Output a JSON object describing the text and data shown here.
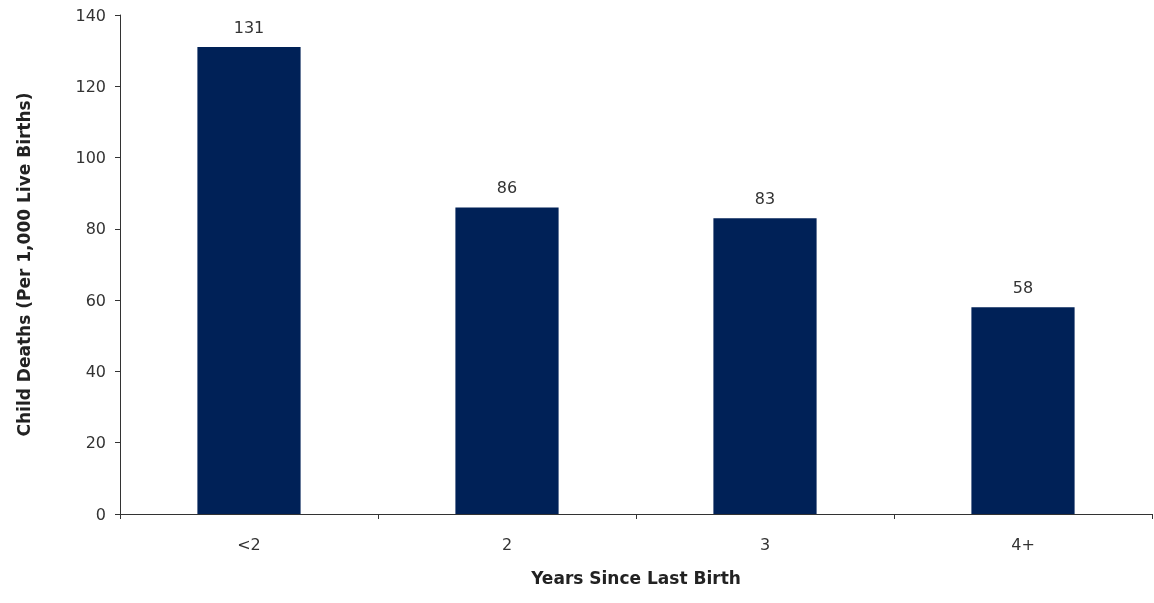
{
  "chart_data": {
    "type": "bar",
    "xlabel": "Years Since Last Birth",
    "ylabel": "Child Deaths (Per 1,000 Live Births)",
    "categories": [
      "<2",
      "2",
      "3",
      "4+"
    ],
    "values": [
      131,
      86,
      83,
      58
    ],
    "color": "#002157",
    "ylim": [
      0,
      140
    ],
    "yticks": [
      0,
      20,
      40,
      60,
      80,
      100,
      120,
      140
    ],
    "grid": false,
    "data_labels": true
  }
}
